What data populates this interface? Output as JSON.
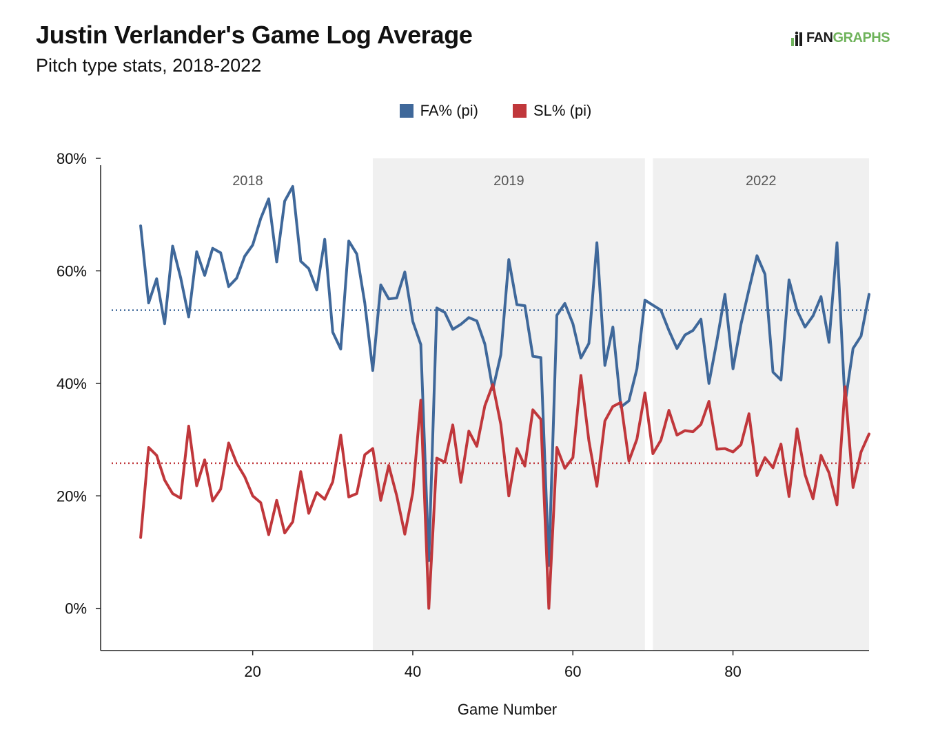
{
  "title": "Justin Verlander's Game Log Average",
  "subtitle": "Pitch type stats, 2018-2022",
  "logo": {
    "text_a": "FAN",
    "text_b": "GRAPHS",
    "mark_icon": "fangraphs-logo-icon"
  },
  "colors": {
    "fa": "#3f689a",
    "sl": "#c0373b",
    "season_band": "#f0f0f0"
  },
  "chart_data": {
    "type": "line",
    "xlabel": "Game Number",
    "ylabel": "",
    "xlim": [
      1,
      97
    ],
    "ylim": [
      -7.5,
      80
    ],
    "x_ticks": [
      20,
      40,
      60,
      80
    ],
    "y_ticks": [
      0,
      20,
      40,
      60,
      80
    ],
    "y_tick_labels": [
      "0%",
      "20%",
      "40%",
      "60%",
      "80%"
    ],
    "grid": false,
    "legend_position": "top",
    "seasons": [
      {
        "label": "2018",
        "start": 1,
        "end": 35,
        "shaded": false
      },
      {
        "label": "2019",
        "start": 35,
        "end": 69,
        "shaded": true
      },
      {
        "label": "2022",
        "start": 70,
        "end": 97,
        "shaded": true
      }
    ],
    "x": [
      6,
      7,
      8,
      9,
      10,
      11,
      12,
      13,
      14,
      15,
      16,
      17,
      18,
      19,
      20,
      21,
      22,
      23,
      24,
      25,
      26,
      27,
      28,
      29,
      30,
      31,
      32,
      33,
      34,
      35,
      36,
      37,
      38,
      39,
      40,
      41,
      42,
      43,
      44,
      45,
      46,
      47,
      48,
      49,
      50,
      51,
      52,
      53,
      54,
      55,
      56,
      57,
      58,
      59,
      60,
      61,
      62,
      63,
      64,
      65,
      66,
      67,
      68,
      69,
      70,
      71,
      72,
      73,
      74,
      75,
      76,
      77,
      78,
      79,
      80,
      81,
      82,
      83,
      84,
      85,
      86,
      87,
      88,
      89,
      90,
      91,
      92,
      93,
      94,
      95,
      96,
      97
    ],
    "series": [
      {
        "name": "FA% (pi)",
        "color": "#3f689a",
        "average": 53,
        "values": [
          68,
          54.3,
          58.6,
          50.6,
          64.4,
          58.8,
          51.8,
          63.4,
          59.2,
          64,
          63.2,
          57.2,
          58.7,
          62.6,
          64.6,
          69.3,
          72.8,
          61.6,
          72.4,
          75,
          61.7,
          60.4,
          56.6,
          65.6,
          49.1,
          46.1,
          65.3,
          63,
          54.3,
          42.3,
          57.5,
          55,
          55.2,
          59.8,
          51,
          46.9,
          8.5,
          53.4,
          52.6,
          49.6,
          50.5,
          51.7,
          51.1,
          47,
          38.9,
          45.1,
          62,
          54,
          53.8,
          44.8,
          44.6,
          7.6,
          52.1,
          54.2,
          50.6,
          44.5,
          47.1,
          65,
          43.2,
          50,
          35.8,
          36.9,
          42.6,
          54.8,
          53.9,
          53,
          49.4,
          46.2,
          48.6,
          49.4,
          51.4,
          40,
          47.6,
          55.8,
          42.6,
          50.5,
          56.7,
          62.7,
          59.4,
          42,
          40.6,
          58.4,
          53,
          50,
          52,
          55.4,
          47.3,
          65,
          36.4,
          46.2,
          48.4,
          55.8
        ]
      },
      {
        "name": "SL% (pi)",
        "color": "#c0373b",
        "average": 25.8,
        "values": [
          12.6,
          28.6,
          27.2,
          22.8,
          20.4,
          19.6,
          32.4,
          21.8,
          26.4,
          19.1,
          21.2,
          29.4,
          25.8,
          23.4,
          20,
          18.8,
          13.1,
          19.2,
          13.4,
          15.4,
          24.3,
          16.9,
          20.6,
          19.4,
          22.5,
          30.8,
          19.8,
          20.4,
          27.3,
          28.4,
          19.2,
          25.4,
          20,
          13.2,
          20.6,
          37,
          0,
          26.7,
          26,
          32.6,
          22.4,
          31.5,
          28.8,
          36,
          39.8,
          32.7,
          20,
          28.4,
          25.3,
          35.3,
          33.6,
          0,
          28.6,
          24.9,
          26.8,
          41.4,
          29.8,
          21.7,
          33.3,
          35.9,
          36.6,
          26.2,
          30.1,
          38.3,
          27.5,
          29.9,
          35.2,
          30.8,
          31.6,
          31.4,
          32.7,
          36.8,
          28.3,
          28.4,
          27.8,
          29.1,
          34.6,
          23.6,
          26.8,
          25,
          29.2,
          19.9,
          31.9,
          23.8,
          19.5,
          27.2,
          24.1,
          18.4,
          39.4,
          21.5,
          27.8,
          31
        ]
      }
    ]
  }
}
